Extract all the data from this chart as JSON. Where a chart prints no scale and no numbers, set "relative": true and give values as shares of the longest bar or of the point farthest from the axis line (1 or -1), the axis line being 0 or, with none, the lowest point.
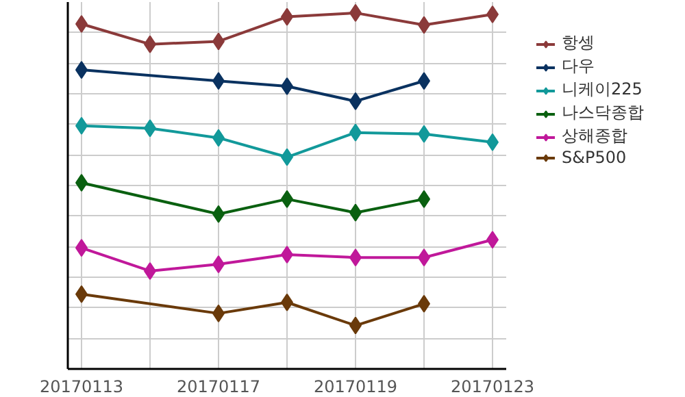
{
  "chart_data": {
    "type": "line",
    "relative": true,
    "categories": [
      "20170113",
      null,
      "20170117",
      null,
      "20170119",
      null,
      "20170123"
    ],
    "marker": "diamond",
    "grid": true,
    "legend": "right",
    "series": [
      {
        "name": "항셍",
        "color": "#8b3a3a",
        "values": [
          0.969,
          0.912,
          0.92,
          0.989,
          1.0,
          0.966,
          0.996
        ]
      },
      {
        "name": "다우",
        "color": "#0a3260",
        "values": [
          0.84,
          null,
          0.809,
          0.794,
          0.752,
          0.809,
          null
        ]
      },
      {
        "name": "니케이225",
        "color": "#12999a",
        "values": [
          0.683,
          0.676,
          0.649,
          0.595,
          0.664,
          0.66,
          0.637
        ]
      },
      {
        "name": "나스닥종합",
        "color": "#0a6010",
        "values": [
          0.523,
          null,
          0.435,
          0.477,
          0.439,
          0.477,
          null
        ]
      },
      {
        "name": "상해종합",
        "color": "#c0189a",
        "values": [
          0.34,
          0.275,
          0.294,
          0.321,
          0.313,
          0.313,
          0.363
        ]
      },
      {
        "name": "S&P500",
        "color": "#6a3a0a",
        "values": [
          0.21,
          null,
          0.156,
          0.187,
          0.122,
          0.183,
          null
        ]
      }
    ]
  }
}
